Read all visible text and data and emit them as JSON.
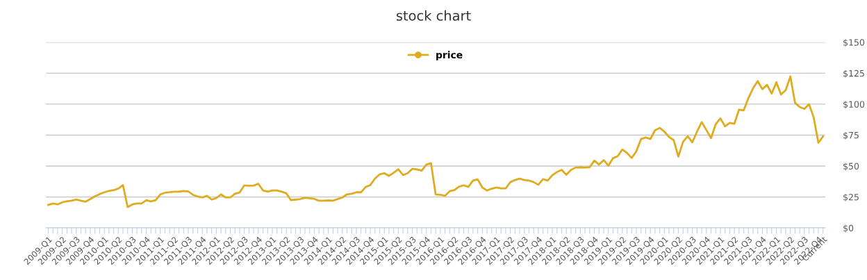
{
  "chart_data": {
    "type": "line",
    "title": "stock chart",
    "categories": [
      "2009-Q1",
      null,
      null,
      "2009-Q2",
      null,
      null,
      "2009-Q3",
      null,
      null,
      "2009-Q4",
      null,
      null,
      "2010-Q1",
      null,
      null,
      "2010-Q2",
      null,
      null,
      "2010-Q3",
      null,
      null,
      "2010-Q4",
      null,
      null,
      "2011-Q1",
      null,
      null,
      "2011-Q2",
      null,
      null,
      "2011-Q3",
      null,
      null,
      "2011-Q4",
      null,
      null,
      "2012-Q1",
      null,
      null,
      "2012-Q2",
      null,
      null,
      "2012-Q3",
      null,
      null,
      "2012-Q4",
      null,
      null,
      "2013-Q1",
      null,
      null,
      "2013-Q2",
      null,
      null,
      "2013-Q3",
      null,
      null,
      "2013-Q4",
      null,
      null,
      "2014-Q1",
      null,
      null,
      "2014-Q2",
      null,
      null,
      "2014-Q3",
      null,
      null,
      "2014-Q4",
      null,
      null,
      "2015-Q1",
      null,
      null,
      "2015-Q2",
      null,
      null,
      "2015-Q3",
      null,
      null,
      "2015-Q4",
      null,
      null,
      "2016-Q1",
      null,
      null,
      "2016-Q2",
      null,
      null,
      "2016-Q3",
      null,
      null,
      "2016-Q4",
      null,
      null,
      "2017-Q1",
      null,
      null,
      "2017-Q2",
      null,
      null,
      "2017-Q3",
      null,
      null,
      "2017-Q4",
      null,
      null,
      "2018-Q1",
      null,
      null,
      "2018-Q2",
      null,
      null,
      "2018-Q3",
      null,
      null,
      "2018-Q4",
      null,
      null,
      "2019-Q1",
      null,
      null,
      "2019-Q2",
      null,
      null,
      "2019-Q3",
      null,
      null,
      "2019-Q4",
      null,
      null,
      "2020-Q1",
      null,
      null,
      "2020-Q2",
      null,
      null,
      "2020-Q3",
      null,
      null,
      "2020-Q4",
      null,
      null,
      "2021-Q1",
      null,
      null,
      "2021-Q2",
      null,
      null,
      "2021-Q3",
      null,
      null,
      "2021-Q4",
      null,
      null,
      "2022-Q1",
      null,
      null,
      "2022-Q2",
      null,
      null,
      "2022-Q3",
      null,
      null,
      "2022-Q4",
      "Current"
    ],
    "series": [
      {
        "name": "price",
        "color": "#dfab1f",
        "values": [
          18.6,
          19.7,
          19,
          20.7,
          21.6,
          22,
          23,
          22,
          21.2,
          23.3,
          25.6,
          27.3,
          28.8,
          29.9,
          30.5,
          31.8,
          34.6,
          16.9,
          19,
          19.7,
          19.7,
          22.4,
          21.4,
          22.4,
          27.1,
          28.4,
          28.8,
          29.3,
          29.3,
          29.9,
          29.5,
          26.7,
          25.4,
          24.6,
          25.9,
          22.9,
          24.1,
          27.1,
          24.6,
          24.6,
          27.6,
          28.6,
          34.4,
          34,
          34.2,
          35.7,
          30.3,
          29.3,
          30.3,
          30.3,
          29.3,
          28,
          22.4,
          22.9,
          23.3,
          24.4,
          23.9,
          23.5,
          22,
          22,
          22.2,
          22,
          23.3,
          24.6,
          27.1,
          27.6,
          28.8,
          28.8,
          33.1,
          34.6,
          39.9,
          43.3,
          44.2,
          42,
          44.6,
          47.4,
          42.7,
          44.2,
          47.8,
          47.2,
          46.3,
          51.2,
          52.3,
          27.1,
          26.7,
          26,
          29.7,
          30.6,
          33.4,
          34.4,
          33.2,
          38.3,
          39.2,
          32.7,
          30.2,
          31.7,
          32.7,
          31.9,
          31.9,
          37,
          38.7,
          39.8,
          38.7,
          38.3,
          37,
          34.9,
          39.4,
          38.3,
          42.6,
          45.2,
          46.9,
          43,
          46.9,
          48.8,
          49,
          48.8,
          49,
          54.4,
          51.2,
          54.8,
          50.3,
          56.3,
          58,
          63.4,
          60.6,
          56.5,
          61.9,
          71.8,
          73.1,
          71.8,
          78.9,
          80.8,
          77.8,
          73.5,
          70.9,
          57.6,
          69.6,
          74.1,
          69.2,
          77.8,
          85.5,
          79.1,
          72.6,
          83.8,
          88.5,
          82.1,
          84.9,
          84.2,
          95.6,
          95,
          104.8,
          112.8,
          118.6,
          112.1,
          115.6,
          108.5,
          117.7,
          107.8,
          111.3,
          122.4,
          101,
          97.7,
          96.2,
          99.9,
          89.2,
          68.8,
          74
        ]
      }
    ],
    "ylim": [
      0,
      150
    ],
    "yticks": [
      {
        "value": 0,
        "label": "$0"
      },
      {
        "value": 25,
        "label": "$25"
      },
      {
        "value": 50,
        "label": "$50"
      },
      {
        "value": 75,
        "label": "$75"
      },
      {
        "value": 100,
        "label": "$100"
      },
      {
        "value": 125,
        "label": "$125"
      },
      {
        "value": 150,
        "label": "$150"
      }
    ],
    "grid": "y",
    "legend": "top",
    "marker": "none",
    "line_style": "solid"
  }
}
